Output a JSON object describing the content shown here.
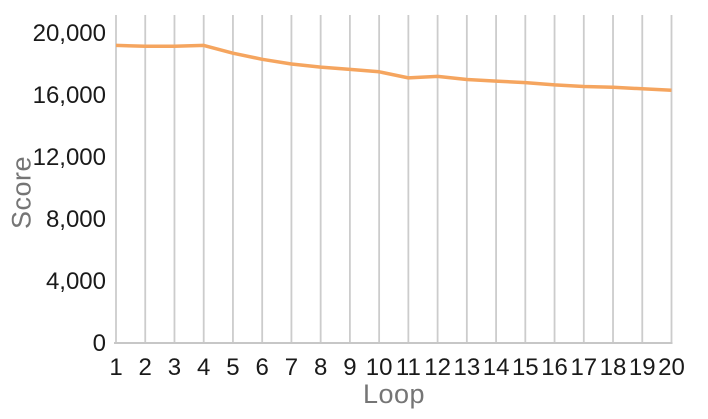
{
  "chart_data": {
    "type": "line",
    "title": "",
    "xlabel": "Loop",
    "ylabel": "Score",
    "x": [
      1,
      2,
      3,
      4,
      5,
      6,
      7,
      8,
      9,
      10,
      11,
      12,
      13,
      14,
      15,
      16,
      17,
      18,
      19,
      20
    ],
    "series": [
      {
        "name": "Score",
        "color": "#F5A55F",
        "values": [
          19200,
          19150,
          19150,
          19200,
          18700,
          18300,
          18000,
          17800,
          17650,
          17500,
          17100,
          17200,
          17000,
          16900,
          16800,
          16650,
          16550,
          16500,
          16400,
          16300
        ]
      }
    ],
    "ylim": [
      0,
      21200
    ],
    "yticks": [
      0,
      4000,
      8000,
      12000,
      16000,
      20000
    ],
    "ytick_labels": [
      "0",
      "4,000",
      "8,000",
      "12,000",
      "16,000",
      "20,000"
    ],
    "grid": "vertical-only",
    "legend_position": "none",
    "colors": {
      "line": "#F5A55F",
      "gridline": "#CCCCCC",
      "axis_line": "#C7C7C7",
      "tick_label": "#1A1A1A",
      "axis_title": "#757575",
      "background": "#FFFFFF"
    }
  }
}
